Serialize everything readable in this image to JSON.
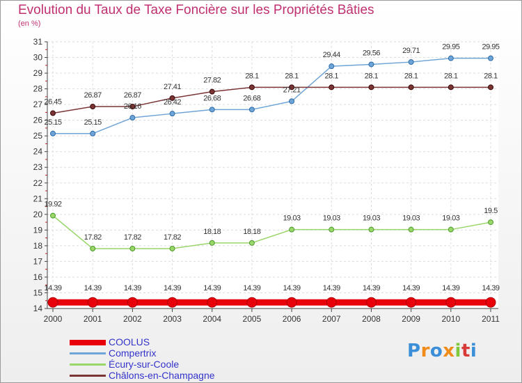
{
  "title": "Evolution du Taux de Taxe Foncière sur les Propriétés Bâties",
  "unit_label": "(en %)",
  "logo": {
    "text": "Proxiti",
    "colors": [
      "#3a8fd8",
      "#f08c1a",
      "#3a8fd8",
      "#f08c1a",
      "#7fc93a",
      "#d83a3a",
      "#3a8fd8"
    ]
  },
  "chart_data": {
    "type": "line",
    "title": "Evolution du Taux de Taxe Foncière sur les Propriétés Bâties",
    "ylabel": "(en %)",
    "xlabel": "",
    "x": [
      "2000",
      "2001",
      "2002",
      "2003",
      "2004",
      "2005",
      "2006",
      "2007",
      "2008",
      "2009",
      "2010",
      "2011"
    ],
    "ylim": [
      14,
      31
    ],
    "yticks": [
      14,
      15,
      16,
      17,
      18,
      19,
      20,
      21,
      22,
      23,
      24,
      25,
      26,
      27,
      28,
      29,
      30,
      31
    ],
    "grid": true,
    "legend_position": "bottom-left",
    "series": [
      {
        "name": "COOLUS",
        "color": "#e8000b",
        "values": [
          14.39,
          14.39,
          14.39,
          14.39,
          14.39,
          14.39,
          14.39,
          14.39,
          14.39,
          14.39,
          14.39,
          14.39
        ],
        "labels": [
          "14.39",
          "14.39",
          "14.39",
          "14.39",
          "14.39",
          "14.39",
          "14.39",
          "14.39",
          "14.39",
          "14.39",
          "14.39",
          "14.39"
        ]
      },
      {
        "name": "Compertrix",
        "color": "#6fa4d6",
        "values": [
          25.15,
          25.15,
          26.16,
          26.42,
          26.68,
          26.68,
          27.21,
          29.44,
          29.56,
          29.71,
          29.95,
          29.95
        ],
        "labels": [
          "25.15",
          "25.15",
          "26.16",
          "26.42",
          "26.68",
          "26.68",
          "27.21",
          "29.44",
          "29.56",
          "29.71",
          "29.95",
          "29.95"
        ]
      },
      {
        "name": "Écury-sur-Coole",
        "color": "#9ad66a",
        "values": [
          19.92,
          17.82,
          17.82,
          17.82,
          18.18,
          18.18,
          19.03,
          19.03,
          19.03,
          19.03,
          19.03,
          19.5
        ],
        "labels": [
          "19.92",
          "17.82",
          "17.82",
          "17.82",
          "18.18",
          "18.18",
          "19.03",
          "19.03",
          "19.03",
          "19.03",
          "19.03",
          "19.5"
        ]
      },
      {
        "name": "Châlons-en-Champagne",
        "color": "#7a3434",
        "values": [
          26.45,
          26.87,
          26.87,
          27.41,
          27.82,
          28.1,
          28.1,
          28.1,
          28.1,
          28.1,
          28.1,
          28.1
        ],
        "labels": [
          "26.45",
          "26.87",
          "26.87",
          "27.41",
          "27.82",
          "28.1",
          "28.1",
          "28.1",
          "28.1",
          "28.1",
          "28.1",
          "28.1"
        ]
      }
    ]
  }
}
